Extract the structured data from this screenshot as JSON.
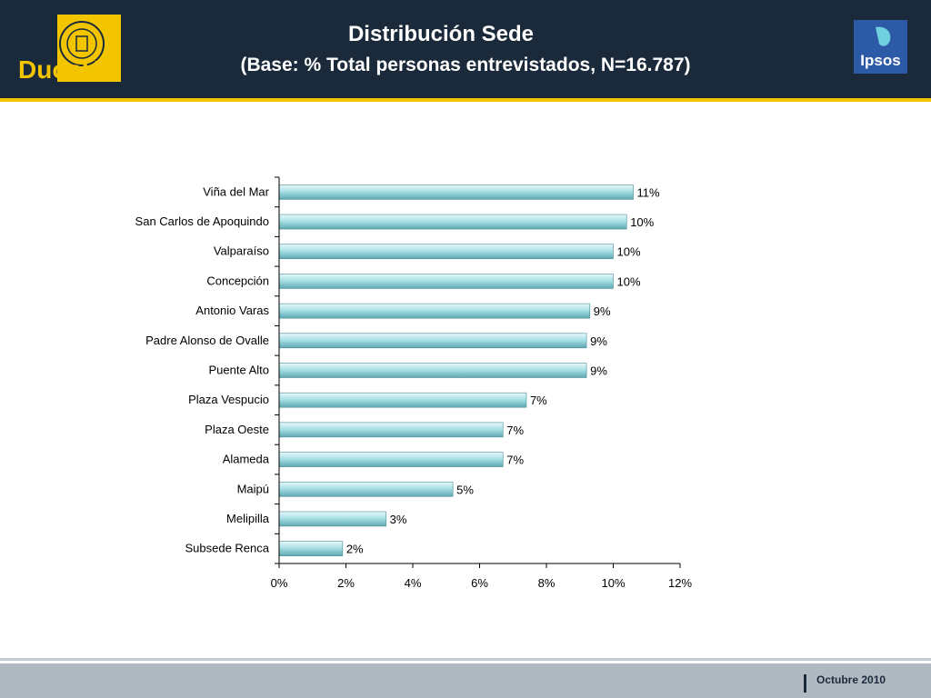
{
  "header": {
    "title": "Distribución Sede",
    "subtitle": "(Base: % Total personas entrevistados, N=16.787)",
    "logo_left_text": "DuocUC",
    "logo_right_text": "Ipsos"
  },
  "footer": {
    "date": "Octubre 2010"
  },
  "colors": {
    "header_bg": "#1a2a3a",
    "accent_yellow": "#f2c500",
    "bar_fill": "#a9e1e6",
    "ipsos_blue": "#2d5aa6"
  },
  "chart_data": {
    "type": "bar",
    "orientation": "horizontal",
    "categories": [
      "Viña del Mar",
      "San Carlos de Apoquindo",
      "Valparaíso",
      "Concepción",
      "Antonio Varas",
      "Padre Alonso de Ovalle",
      "Puente Alto",
      "Plaza Vespucio",
      "Plaza Oeste",
      "Alameda",
      "Maipú",
      "Melipilla",
      "Subsede Renca"
    ],
    "values": [
      10.6,
      10.4,
      10.0,
      10.0,
      9.3,
      9.2,
      9.2,
      7.4,
      6.7,
      6.7,
      5.2,
      3.2,
      1.9
    ],
    "data_labels": [
      "11%",
      "10%",
      "10%",
      "10%",
      "9%",
      "9%",
      "9%",
      "7%",
      "7%",
      "7%",
      "5%",
      "3%",
      "2%"
    ],
    "xlim": [
      0,
      12
    ],
    "x_ticks": [
      "0%",
      "2%",
      "4%",
      "6%",
      "8%",
      "10%",
      "12%"
    ],
    "grid": false,
    "legend": "none"
  }
}
